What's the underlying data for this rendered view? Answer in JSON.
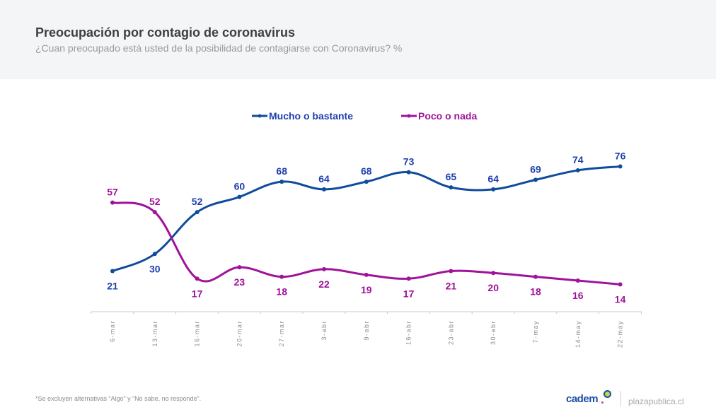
{
  "header": {
    "title": "Preocupación por contagio de coronavirus",
    "subtitle": "¿Cuan preocupado está usted de la posibilidad de contagiarse con Coronavirus? %"
  },
  "footer": {
    "footnote": "*Se excluyen alternativas “Algo” y “No sabe, no responde”.",
    "logo_text": "cadem",
    "site": "plazapublica.cl"
  },
  "chart_data": {
    "type": "line",
    "title": "Preocupación por contagio de coronavirus",
    "subtitle": "¿Cuan preocupado está usted de la posibilidad de contagiarse con Coronavirus? %",
    "xlabel": "",
    "ylabel": "",
    "ylim": [
      0,
      80
    ],
    "grid": false,
    "legend_position": "top-center",
    "categories": [
      "6-mar",
      "13-mar",
      "16-mar",
      "20-mar",
      "27-mar",
      "3-abr",
      "9-abr",
      "16-abr",
      "23-abr",
      "30-abr",
      "7-may",
      "14-may",
      "22-may"
    ],
    "series": [
      {
        "name": "Mucho o bastante",
        "color": "#0f4c9c",
        "label_color": "#1f3fae",
        "label_pos": "auto",
        "values": [
          21,
          30,
          52,
          60,
          68,
          64,
          68,
          73,
          65,
          64,
          69,
          74,
          76
        ]
      },
      {
        "name": "Poco o nada",
        "color": "#a0129a",
        "label_color": "#a0129a",
        "label_pos": "auto",
        "values": [
          57,
          52,
          17,
          23,
          18,
          22,
          19,
          17,
          21,
          20,
          18,
          16,
          14
        ]
      }
    ]
  }
}
